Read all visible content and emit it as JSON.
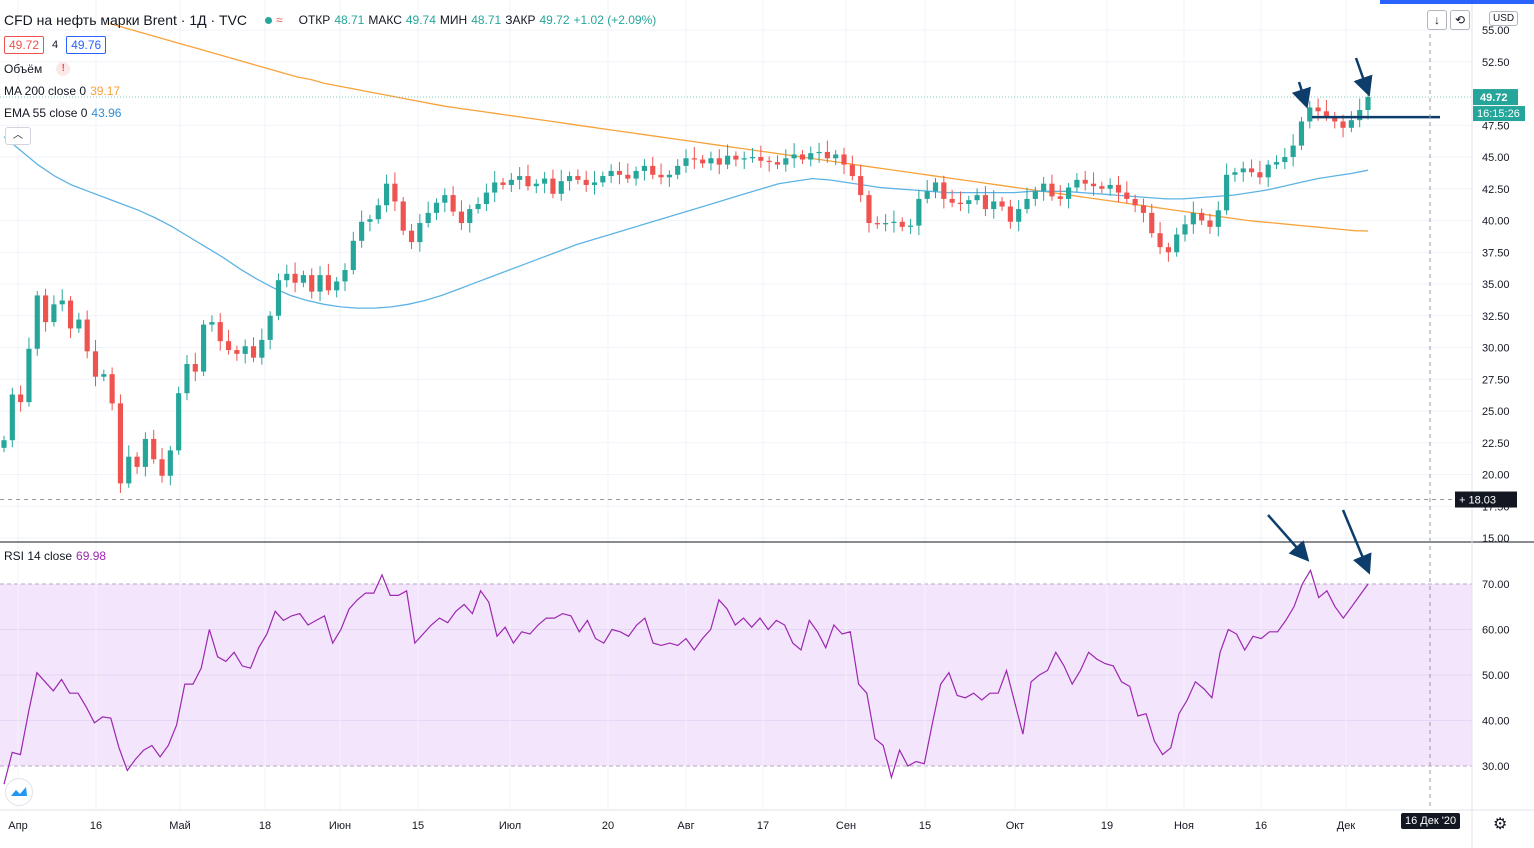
{
  "header": {
    "symbol_title": "CFD на нефть марки Brent · 1Д · TVC",
    "open_label": "ОТКР",
    "open_value": "48.71",
    "high_label": "МАКС",
    "high_value": "49.74",
    "low_label": "МИН",
    "low_value": "48.71",
    "close_label": "ЗАКР",
    "close_value": "49.72",
    "change": "+1.02 (+2.09%)",
    "bid": "49.72",
    "spread": "4",
    "ask": "49.76",
    "currency": "USD"
  },
  "indicators": {
    "volume_label": "Объём",
    "ma_label": "MA 200 close 0",
    "ma_value": "39.17",
    "ema_label": "EMA 55 close 0",
    "ema_value": "43.96",
    "rsi_label": "RSI 14 close",
    "rsi_value": "69.98"
  },
  "price_axis": {
    "last_price": "49.72",
    "countdown": "16:15:26",
    "crosshair_price": "18.03"
  },
  "time_axis": {
    "crosshair_date": "16 Дек '20"
  },
  "colors": {
    "up": "#26a69a",
    "down": "#ef5350",
    "ma": "#f7a23b",
    "ema": "#5eb3e4",
    "rsi": "#9c27b0",
    "rsi_band": "#f3e5fc",
    "annotation": "#0d3e6b"
  },
  "chart_data": [
    {
      "type": "candlestick",
      "title": "CFD на нефть марки Brent · 1Д · TVC",
      "ylim": [
        15,
        55
      ],
      "y_ticks": [
        "55.00",
        "52.50",
        "47.50",
        "45.00",
        "42.50",
        "40.00",
        "37.50",
        "35.00",
        "32.50",
        "30.00",
        "27.50",
        "25.00",
        "22.50",
        "20.00",
        "17.50",
        "15.00"
      ],
      "x_ticks": [
        "Апр",
        "16",
        "Май",
        "18",
        "Июн",
        "15",
        "Июл",
        "20",
        "Авг",
        "17",
        "Сен",
        "15",
        "Окт",
        "19",
        "Ноя",
        "16",
        "Дек"
      ],
      "close": [
        22.7,
        26.3,
        25.7,
        29.9,
        34.1,
        32.0,
        33.4,
        33.7,
        31.5,
        32.2,
        29.7,
        27.7,
        27.9,
        25.6,
        19.3,
        21.4,
        20.6,
        22.8,
        21.2,
        19.9,
        21.9,
        26.4,
        28.7,
        28.1,
        31.8,
        32.0,
        30.5,
        29.8,
        29.5,
        30.1,
        29.2,
        30.6,
        32.5,
        35.3,
        35.8,
        35.1,
        35.7,
        34.4,
        35.7,
        34.5,
        35.2,
        36.1,
        38.4,
        39.9,
        40.1,
        41.2,
        42.9,
        41.5,
        39.2,
        38.3,
        39.8,
        40.6,
        41.4,
        42.0,
        40.7,
        39.8,
        40.9,
        41.3,
        42.2,
        43.0,
        42.8,
        43.2,
        43.5,
        42.7,
        42.9,
        43.3,
        42.1,
        43.1,
        43.5,
        43.2,
        42.8,
        43.0,
        43.5,
        43.9,
        43.6,
        43.3,
        43.9,
        44.3,
        43.6,
        43.4,
        43.6,
        44.3,
        44.9,
        44.8,
        44.5,
        44.9,
        44.4,
        45.1,
        44.8,
        44.9,
        45.0,
        44.7,
        44.6,
        44.4,
        44.9,
        45.2,
        44.8,
        45.3,
        45.4,
        44.9,
        45.2,
        44.4,
        43.5,
        42.0,
        39.8,
        39.7,
        39.8,
        39.9,
        39.5,
        39.6,
        41.7,
        42.3,
        43.0,
        41.7,
        41.4,
        41.3,
        41.6,
        42.0,
        40.9,
        41.5,
        41.1,
        39.9,
        40.9,
        41.7,
        42.3,
        42.9,
        41.9,
        41.7,
        42.6,
        43.2,
        42.9,
        42.7,
        42.5,
        42.8,
        42.2,
        41.7,
        41.2,
        40.6,
        39.0,
        37.9,
        37.5,
        38.9,
        39.7,
        40.6,
        40.0,
        39.5,
        40.8,
        43.6,
        43.8,
        44.1,
        43.8,
        43.4,
        44.4,
        44.6,
        45.0,
        45.9,
        47.8,
        48.9,
        48.6,
        48.2,
        47.8,
        47.3,
        47.9,
        48.7,
        49.72
      ],
      "ma200": [
        55.5,
        55.2,
        54.9,
        54.6,
        54.3,
        54.0,
        53.7,
        53.4,
        53.1,
        52.8,
        52.5,
        52.2,
        51.9,
        51.6,
        51.3,
        51.1,
        50.8,
        50.6,
        50.4,
        50.2,
        50.0,
        49.8,
        49.6,
        49.4,
        49.2,
        49.0,
        48.85,
        48.7,
        48.55,
        48.4,
        48.25,
        48.1,
        47.95,
        47.8,
        47.65,
        47.5,
        47.35,
        47.2,
        47.05,
        46.9,
        46.75,
        46.6,
        46.45,
        46.3,
        46.15,
        46.0,
        45.85,
        45.7,
        45.55,
        45.4,
        45.25,
        45.1,
        44.95,
        44.8,
        44.65,
        44.5,
        44.35,
        44.2,
        44.05,
        43.9,
        43.75,
        43.6,
        43.45,
        43.3,
        43.15,
        43.0,
        42.85,
        42.7,
        42.55,
        42.4,
        42.25,
        42.1,
        41.95,
        41.8,
        41.65,
        41.5,
        41.35,
        41.2,
        41.05,
        40.9,
        40.75,
        40.6,
        40.45,
        40.3,
        40.15,
        40.0,
        39.9,
        39.8,
        39.7,
        39.6,
        39.5,
        39.4,
        39.3,
        39.2,
        39.17
      ],
      "ema55": [
        46.6,
        45.5,
        44.4,
        43.5,
        42.8,
        42.3,
        41.8,
        41.3,
        40.8,
        40.2,
        39.5,
        38.7,
        37.9,
        37.1,
        36.2,
        35.4,
        34.7,
        34.1,
        33.7,
        33.4,
        33.2,
        33.1,
        33.1,
        33.2,
        33.4,
        33.7,
        34.1,
        34.6,
        35.1,
        35.6,
        36.1,
        36.6,
        37.1,
        37.6,
        38.1,
        38.5,
        38.9,
        39.3,
        39.7,
        40.1,
        40.5,
        40.9,
        41.3,
        41.7,
        42.1,
        42.5,
        42.9,
        43.1,
        43.3,
        43.2,
        43.0,
        42.8,
        42.6,
        42.5,
        42.4,
        42.3,
        42.2,
        42.2,
        42.2,
        42.2,
        42.2,
        42.3,
        42.3,
        42.3,
        42.2,
        42.1,
        42.0,
        41.9,
        41.8,
        41.7,
        41.7,
        41.8,
        41.9,
        42.0,
        42.2,
        42.4,
        42.7,
        43.0,
        43.3,
        43.5,
        43.7,
        43.96
      ]
    },
    {
      "type": "line",
      "title": "RSI 14 close",
      "ylim": [
        20,
        75
      ],
      "y_ticks": [
        "70.00",
        "60.00",
        "50.00",
        "40.00",
        "30.00"
      ],
      "band": [
        30,
        70
      ],
      "values": [
        26.0,
        33.0,
        32.5,
        42.0,
        50.5,
        48.5,
        46.5,
        49.0,
        46.0,
        46.0,
        43.0,
        39.5,
        40.8,
        40.5,
        34.0,
        29.0,
        31.5,
        33.5,
        34.5,
        32.0,
        34.5,
        39.0,
        48.0,
        48.0,
        51.5,
        60.0,
        54.0,
        53.0,
        55.0,
        52.0,
        51.5,
        56.0,
        59.0,
        64.0,
        62.0,
        63.0,
        63.5,
        61.0,
        62.0,
        63.0,
        57.0,
        60.0,
        64.5,
        66.5,
        68.0,
        68.0,
        72.0,
        67.5,
        67.5,
        68.5,
        57.0,
        59.0,
        61.0,
        62.5,
        61.5,
        64.0,
        65.5,
        63.5,
        68.5,
        66.0,
        58.5,
        60.5,
        57.0,
        59.5,
        59.0,
        61.0,
        62.5,
        62.5,
        63.5,
        63.0,
        59.5,
        62.0,
        58.0,
        57.0,
        60.0,
        59.5,
        58.5,
        61.0,
        62.5,
        57.0,
        56.5,
        57.0,
        56.5,
        58.0,
        55.5,
        58.0,
        60.0,
        66.5,
        64.5,
        61.0,
        62.5,
        60.5,
        62.5,
        60.0,
        62.0,
        61.0,
        57.0,
        55.5,
        62.0,
        59.5,
        56.0,
        61.0,
        59.0,
        59.5,
        48.0,
        46.0,
        36.0,
        34.5,
        27.5,
        33.5,
        30.0,
        31.0,
        30.5,
        39.5,
        48.0,
        50.5,
        45.5,
        45.0,
        46.0,
        44.5,
        46.0,
        46.0,
        51.0,
        44.0,
        37.0,
        48.5,
        50.0,
        51.0,
        55.0,
        52.0,
        48.0,
        51.0,
        55.0,
        53.5,
        52.5,
        52.0,
        48.5,
        47.5,
        41.0,
        41.5,
        35.5,
        32.5,
        34.0,
        41.5,
        44.5,
        48.5,
        47.0,
        45.0,
        55.0,
        60.0,
        59.0,
        55.5,
        58.5,
        58.0,
        59.5,
        59.5,
        62.0,
        65.0,
        70.0,
        73.0,
        67.0,
        68.5,
        65.0,
        62.5,
        65.0,
        67.5,
        69.98
      ]
    }
  ]
}
